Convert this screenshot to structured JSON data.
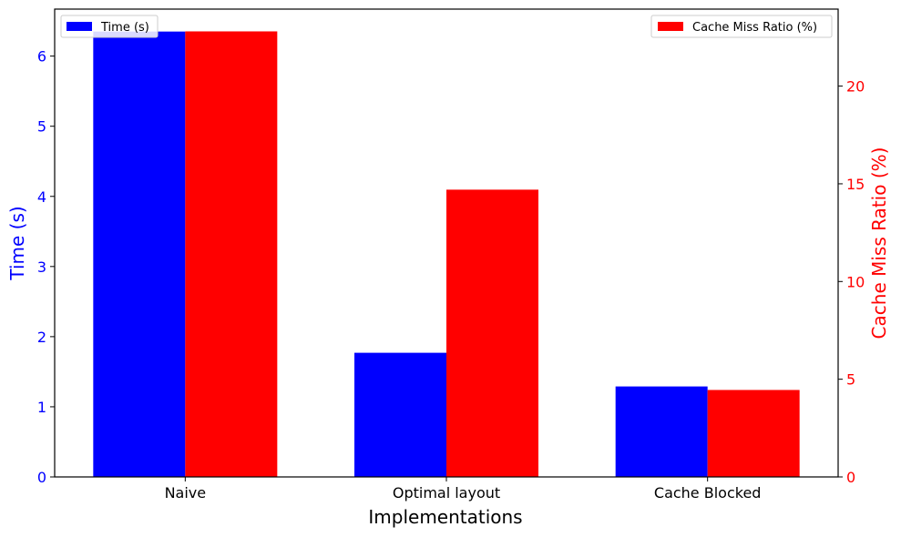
{
  "chart_data": {
    "type": "bar",
    "categories": [
      "Naive",
      "Optimal layout",
      "Cache Blocked"
    ],
    "xlabel": "Implementations",
    "series": [
      {
        "name": "Time (s)",
        "axis": "left",
        "color": "#0000ff",
        "values": [
          6.35,
          1.77,
          1.29
        ]
      },
      {
        "name": "Cache Miss Ratio (%)",
        "axis": "right",
        "color": "#ff0000",
        "values": [
          22.8,
          14.7,
          4.45
        ]
      }
    ],
    "left_axis": {
      "label": "Time (s)",
      "color": "#0000ff",
      "ylim": [
        0,
        6.67
      ],
      "ticks": [
        "0",
        "1",
        "2",
        "3",
        "4",
        "5",
        "6"
      ]
    },
    "right_axis": {
      "label": "Cache Miss Ratio (%)",
      "color": "#ff0000",
      "ylim": [
        0,
        23.94
      ],
      "ticks": [
        "0",
        "5",
        "10",
        "15",
        "20"
      ]
    },
    "legends": [
      {
        "series": "Time (s)",
        "placement": "top-left"
      },
      {
        "series": "Cache Miss Ratio (%)",
        "placement": "top-right"
      }
    ],
    "grid": false
  }
}
